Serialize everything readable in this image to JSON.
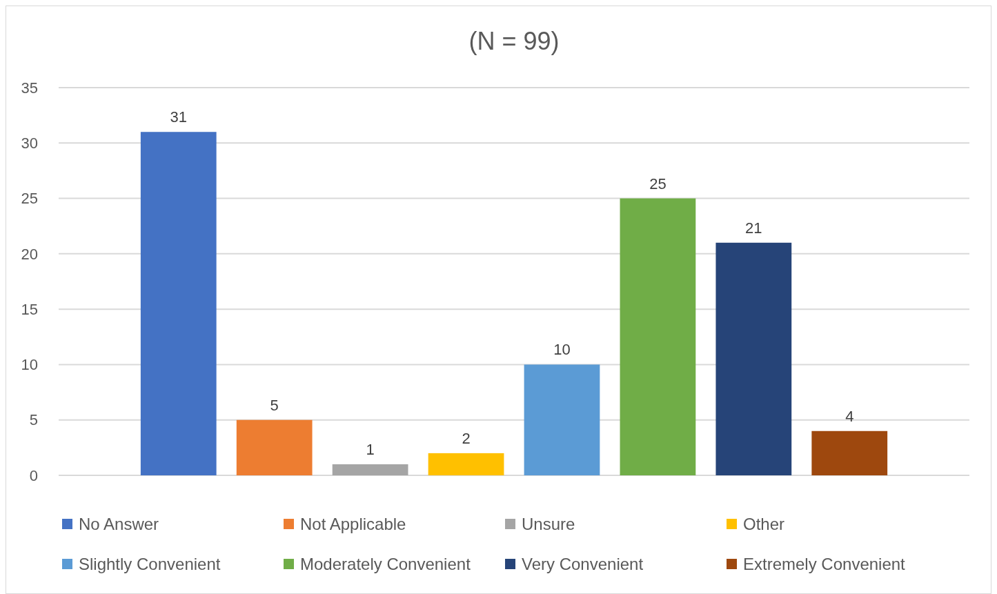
{
  "chart_data": {
    "type": "bar",
    "title": "(N = 99)",
    "categories": [
      null
    ],
    "series": [
      {
        "name": "No Answer",
        "color": "#4472c4",
        "values": [
          31
        ]
      },
      {
        "name": "Not Applicable",
        "color": "#ed7d31",
        "values": [
          5
        ]
      },
      {
        "name": "Unsure",
        "color": "#a5a5a5",
        "values": [
          1
        ]
      },
      {
        "name": "Other",
        "color": "#ffc000",
        "values": [
          2
        ]
      },
      {
        "name": "Slightly Convenient",
        "color": "#5b9bd5",
        "values": [
          10
        ]
      },
      {
        "name": "Moderately Convenient",
        "color": "#70ad47",
        "values": [
          25
        ]
      },
      {
        "name": "Very Convenient",
        "color": "#264478",
        "values": [
          21
        ]
      },
      {
        "name": "Extremely Convenient",
        "color": "#9e480e",
        "values": [
          4
        ]
      }
    ],
    "ylim": [
      0,
      35
    ],
    "yticks": [
      0,
      5,
      10,
      15,
      20,
      25,
      30,
      35
    ],
    "grid": "y",
    "legend": "bottom",
    "data_labels": true
  }
}
